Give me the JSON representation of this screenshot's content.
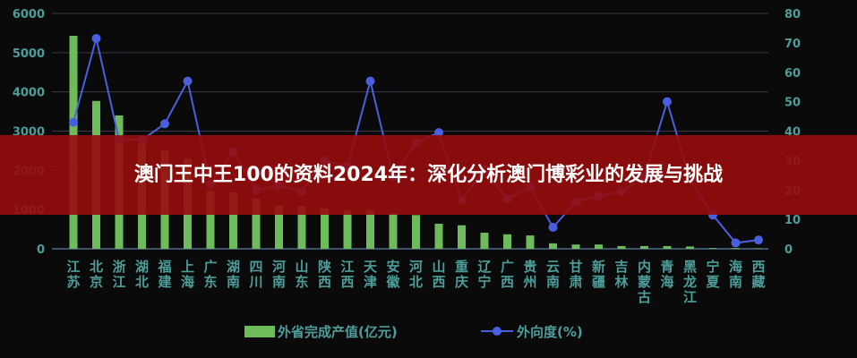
{
  "chart_data": {
    "type": "bar+line",
    "categories": [
      "江苏",
      "北京",
      "浙江",
      "湖北",
      "福建",
      "上海",
      "广东",
      "湖南",
      "四川",
      "河南",
      "山东",
      "陕西",
      "江西",
      "天津",
      "安徽",
      "河北",
      "山西",
      "重庆",
      "辽宁",
      "广西",
      "贵州",
      "云南",
      "甘肃",
      "新疆",
      "吉林",
      "内蒙古",
      "青海",
      "黑龙江",
      "宁夏",
      "海南",
      "西藏"
    ],
    "series": [
      {
        "name": "外省完成产值(亿元)",
        "type": "bar",
        "axis": "left",
        "color": "#6dbb5a",
        "values": [
          5430,
          3770,
          3400,
          2700,
          2500,
          2300,
          1480,
          1440,
          1280,
          1100,
          1090,
          1030,
          980,
          980,
          910,
          860,
          640,
          600,
          410,
          370,
          340,
          140,
          110,
          110,
          70,
          70,
          70,
          60,
          20,
          20,
          10
        ]
      },
      {
        "name": "外向度(%)",
        "type": "line",
        "axis": "right",
        "color": "#4a5fe0",
        "values": [
          43,
          71.5,
          37,
          37,
          42.5,
          57,
          22,
          33,
          20,
          21.5,
          19.5,
          30,
          28,
          57,
          24.5,
          36,
          39.5,
          16.5,
          27,
          17,
          21,
          7.3,
          16,
          18,
          19.5,
          24.5,
          50,
          23.5,
          11.5,
          2,
          3
        ]
      }
    ],
    "left_axis": {
      "range": [
        0,
        6000
      ],
      "ticks": [
        "0",
        "1000",
        "2000",
        "3000",
        "4000",
        "5000",
        "6000"
      ]
    },
    "right_axis": {
      "range": [
        0,
        80
      ],
      "ticks": [
        "0",
        "10",
        "20",
        "30",
        "40",
        "50",
        "60",
        "70",
        "80"
      ]
    },
    "grid": true,
    "legend": "bottom"
  },
  "banner": {
    "title": "澳门王中王100的资料2024年：深化分析澳门博彩业的发展与挑战"
  }
}
